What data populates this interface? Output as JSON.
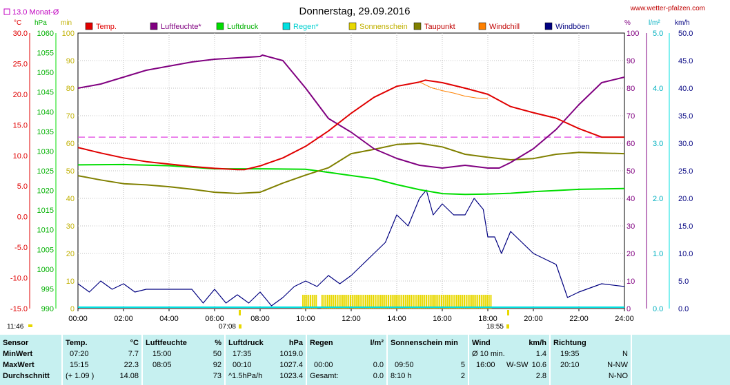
{
  "header": {
    "title": "Donnerstag, 29.09.2016",
    "website": "www.wetter-pfalzen.com",
    "monthly_avg_label": "13.0 Monat-Ø",
    "time_left": "11:46",
    "sunrise": "07:08",
    "sunset": "18:55"
  },
  "colors": {
    "temp": "#e00000",
    "humidity": "#800080",
    "pressure": "#00dd00",
    "rain": "#00e0e0",
    "sun": "#e8d800",
    "dewpoint": "#808000",
    "windchill": "#ff8000",
    "gusts": "#000080",
    "avg_line": "#e040e0",
    "table_bg": "#c6f0f0"
  },
  "chart_data": {
    "type": "line",
    "legend": [
      "Temp.",
      "Luftfeuchte*",
      "Luftdruck",
      "Regen*",
      "Sonnenschein",
      "Taupunkt",
      "Windchill",
      "Windböen"
    ],
    "x_ticks": [
      "00:00",
      "02:00",
      "04:00",
      "06:00",
      "08:00",
      "10:00",
      "12:00",
      "14:00",
      "16:00",
      "18:00",
      "20:00",
      "22:00",
      "24:00"
    ],
    "axes": {
      "temp": {
        "unit": "°C",
        "range": [
          -15,
          30
        ],
        "ticks": [
          "30.0",
          "25.0",
          "20.0",
          "15.0",
          "10.0",
          "5.0",
          "0.0",
          "-5.0",
          "-10.0",
          "-15.0"
        ]
      },
      "pressure": {
        "unit": "hPa",
        "range": [
          990,
          1060
        ],
        "ticks": [
          "1060",
          "1055",
          "1050",
          "1045",
          "1040",
          "1035",
          "1030",
          "1025",
          "1020",
          "1015",
          "1010",
          "1005",
          "1000",
          "995",
          "990"
        ]
      },
      "minutes": {
        "unit": "min",
        "range": [
          0,
          100
        ],
        "ticks": [
          "100",
          "90",
          "80",
          "70",
          "60",
          "50",
          "40",
          "30",
          "20",
          "10",
          "0"
        ]
      },
      "humidity": {
        "unit": "%",
        "range": [
          0,
          100
        ],
        "ticks": [
          "100",
          "90",
          "80",
          "70",
          "60",
          "50",
          "40",
          "30",
          "20",
          "10",
          "0"
        ]
      },
      "rain": {
        "unit": "l/m²",
        "range": [
          0,
          5
        ],
        "ticks": [
          "5.0",
          "4.0",
          "3.0",
          "2.0",
          "1.0",
          "0.0"
        ]
      },
      "wind": {
        "unit": "km/h",
        "range": [
          0,
          50
        ],
        "ticks": [
          "50.0",
          "45.0",
          "40.0",
          "35.0",
          "30.0",
          "25.0",
          "20.0",
          "15.0",
          "10.0",
          "5.0",
          "0.0"
        ]
      }
    },
    "monthly_avg_temp": 13.0,
    "series": [
      {
        "name": "Temp.",
        "axis": "temp",
        "points": [
          [
            0,
            11.3
          ],
          [
            1,
            10.4
          ],
          [
            2,
            9.6
          ],
          [
            3,
            9.0
          ],
          [
            4,
            8.6
          ],
          [
            5,
            8.2
          ],
          [
            6,
            7.9
          ],
          [
            7,
            7.7
          ],
          [
            7.33,
            7.7
          ],
          [
            8,
            8.3
          ],
          [
            9,
            9.6
          ],
          [
            10,
            11.5
          ],
          [
            11,
            14.0
          ],
          [
            12,
            16.9
          ],
          [
            13,
            19.5
          ],
          [
            14,
            21.3
          ],
          [
            15,
            22.0
          ],
          [
            15.25,
            22.3
          ],
          [
            16,
            21.9
          ],
          [
            17,
            21.0
          ],
          [
            18,
            20.0
          ],
          [
            19,
            18.0
          ],
          [
            20,
            17.0
          ],
          [
            21,
            16.1
          ],
          [
            22,
            14.4
          ],
          [
            23,
            13.0
          ],
          [
            24,
            13.0
          ]
        ]
      },
      {
        "name": "Luftfeuchte*",
        "axis": "humidity",
        "points": [
          [
            0,
            80
          ],
          [
            1,
            81.5
          ],
          [
            2,
            84
          ],
          [
            3,
            86.5
          ],
          [
            4,
            88
          ],
          [
            5,
            89.5
          ],
          [
            6,
            90.5
          ],
          [
            7,
            91
          ],
          [
            8,
            91.5
          ],
          [
            8.1,
            92
          ],
          [
            9,
            90
          ],
          [
            10,
            80
          ],
          [
            11,
            69
          ],
          [
            12,
            64
          ],
          [
            13,
            58
          ],
          [
            14,
            54.5
          ],
          [
            15,
            52
          ],
          [
            16,
            51
          ],
          [
            17,
            52
          ],
          [
            18,
            51
          ],
          [
            18.5,
            51
          ],
          [
            19,
            53
          ],
          [
            20,
            58
          ],
          [
            21,
            65
          ],
          [
            22,
            74
          ],
          [
            23,
            82
          ],
          [
            24,
            84
          ]
        ]
      },
      {
        "name": "Luftdruck",
        "axis": "pressure",
        "points": [
          [
            0,
            1026.5
          ],
          [
            2,
            1026.6
          ],
          [
            4,
            1026.3
          ],
          [
            6,
            1025.5
          ],
          [
            8,
            1025.5
          ],
          [
            10,
            1025.4
          ],
          [
            11,
            1024.6
          ],
          [
            12,
            1023.8
          ],
          [
            13,
            1023.0
          ],
          [
            14,
            1021.5
          ],
          [
            15,
            1020.2
          ],
          [
            16,
            1019.2
          ],
          [
            17,
            1019.0
          ],
          [
            18,
            1019.1
          ],
          [
            19,
            1019.3
          ],
          [
            20,
            1019.7
          ],
          [
            21,
            1020.0
          ],
          [
            22,
            1020.3
          ],
          [
            24,
            1020.5
          ]
        ]
      },
      {
        "name": "Taupunkt",
        "axis": "temp",
        "points": [
          [
            0,
            6.7
          ],
          [
            1,
            6.0
          ],
          [
            2,
            5.4
          ],
          [
            3,
            5.2
          ],
          [
            4,
            4.9
          ],
          [
            5,
            4.5
          ],
          [
            6,
            4.0
          ],
          [
            7,
            3.8
          ],
          [
            8,
            4.0
          ],
          [
            9,
            5.5
          ],
          [
            10,
            6.8
          ],
          [
            11,
            8.0
          ],
          [
            12,
            10.3
          ],
          [
            13,
            11.0
          ],
          [
            14,
            11.8
          ],
          [
            15,
            12.0
          ],
          [
            16,
            11.4
          ],
          [
            17,
            10.2
          ],
          [
            18,
            9.7
          ],
          [
            19,
            9.3
          ],
          [
            20,
            9.5
          ],
          [
            21,
            10.2
          ],
          [
            22,
            10.5
          ],
          [
            23,
            10.4
          ],
          [
            24,
            10.3
          ]
        ]
      },
      {
        "name": "Windchill",
        "axis": "temp",
        "points": [
          [
            15,
            22.0
          ],
          [
            15.5,
            21.1
          ],
          [
            16,
            20.6
          ],
          [
            16.5,
            20.2
          ],
          [
            17,
            19.7
          ],
          [
            17.5,
            19.4
          ],
          [
            18,
            19.3
          ]
        ]
      },
      {
        "name": "Windböen",
        "axis": "wind",
        "points": [
          [
            0,
            4.5
          ],
          [
            0.5,
            3
          ],
          [
            1,
            5
          ],
          [
            1.5,
            3.5
          ],
          [
            2,
            4.5
          ],
          [
            2.5,
            3
          ],
          [
            3,
            3.5
          ],
          [
            4,
            3.5
          ],
          [
            5,
            3.5
          ],
          [
            5.5,
            1
          ],
          [
            6,
            3.5
          ],
          [
            6.5,
            1
          ],
          [
            7,
            2.5
          ],
          [
            7.5,
            1
          ],
          [
            8,
            3
          ],
          [
            8.5,
            0.5
          ],
          [
            9,
            2
          ],
          [
            9.5,
            4
          ],
          [
            10,
            5
          ],
          [
            10.5,
            4
          ],
          [
            11,
            6
          ],
          [
            11.5,
            4.5
          ],
          [
            12,
            6
          ],
          [
            12.5,
            8
          ],
          [
            13,
            10
          ],
          [
            13.5,
            12
          ],
          [
            14,
            17
          ],
          [
            14.5,
            15
          ],
          [
            15,
            20
          ],
          [
            15.3,
            21.5
          ],
          [
            15.6,
            17
          ],
          [
            16,
            19
          ],
          [
            16.5,
            17
          ],
          [
            17,
            17
          ],
          [
            17.4,
            20
          ],
          [
            17.8,
            18
          ],
          [
            18,
            13
          ],
          [
            18.3,
            13
          ],
          [
            18.6,
            10
          ],
          [
            19,
            14
          ],
          [
            19.5,
            12
          ],
          [
            20,
            10
          ],
          [
            21,
            8
          ],
          [
            21.5,
            2
          ],
          [
            22,
            3
          ],
          [
            23,
            4.5
          ],
          [
            24,
            4
          ]
        ]
      }
    ],
    "sunshine_ranges": [
      [
        9.88,
        10.5
      ],
      [
        10.72,
        18.15
      ]
    ]
  },
  "table": {
    "row_labels": {
      "sensor": "Sensor",
      "min": "MinWert",
      "max": "MaxWert",
      "avg": "Durchschnitt"
    },
    "columns": [
      {
        "title": "Temp.",
        "unit": "°C",
        "min_time": "07:20",
        "min_val": "7.7",
        "max_time": "15:15",
        "max_val": "22.3",
        "avg_extra": "(+ 1.09 )",
        "avg_val": "14.08"
      },
      {
        "title": "Luftfeuchte",
        "unit": "%",
        "min_time": "15:00",
        "min_val": "50",
        "max_time": "08:05",
        "max_val": "92",
        "avg_extra": "",
        "avg_val": "73"
      },
      {
        "title": "Luftdruck",
        "unit": "hPa",
        "min_time": "17:35",
        "min_val": "1019.0",
        "max_time": "00:10",
        "max_val": "1027.4",
        "avg_extra": "^1.5hPa/h",
        "avg_val": "1023.4"
      },
      {
        "title": "Regen",
        "unit": "l/m²",
        "min_time": "",
        "min_val": "",
        "max_time": "00:00",
        "max_val": "0.0",
        "avg_extra": "Gesamt:",
        "avg_val": "0.0"
      },
      {
        "title": "Sonnenschein min",
        "unit": "",
        "min_time": "",
        "min_val": "",
        "max_time": "09:50",
        "max_val": "5",
        "avg_extra": "8:10 h",
        "avg_val": "2"
      },
      {
        "title": "Wind",
        "unit": "km/h",
        "min_time": "Ø 10 min.",
        "min_val": "1.4",
        "max_time": "16:00",
        "max_mid": "W-SW",
        "max_val": "10.6",
        "avg_extra": "",
        "avg_val": "2.8"
      },
      {
        "title": "Richtung",
        "unit": "",
        "min_time": "19:35",
        "min_val": "N",
        "max_time": "20:10",
        "max_val": "N-NW",
        "avg_extra": "",
        "avg_val": "N-NO"
      }
    ]
  }
}
